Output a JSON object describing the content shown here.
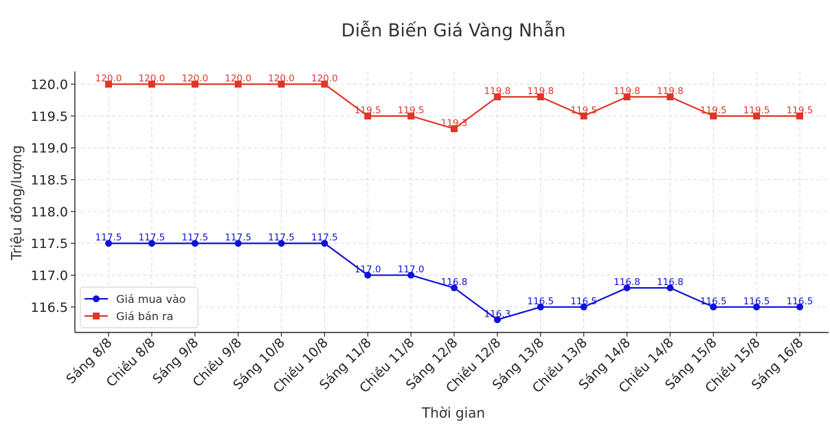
{
  "chart_data": {
    "type": "line",
    "title": "Diễn Biến Giá Vàng Nhẫn",
    "xlabel": "Thời gian",
    "ylabel": "Triệu đồng/lượng",
    "ylim": [
      116.1,
      120.2
    ],
    "yticks": [
      116.5,
      117.0,
      117.5,
      118.0,
      118.5,
      119.0,
      119.5,
      120.0
    ],
    "ytick_labels": [
      "116.5",
      "117.0",
      "117.5",
      "118.0",
      "118.5",
      "119.0",
      "119.5",
      "120.0"
    ],
    "grid": true,
    "legend_position": "lower-left",
    "categories": [
      "Sáng 8/8",
      "Chiều 8/8",
      "Sáng 9/8",
      "Chiều 9/8",
      "Sáng 10/8",
      "Chiều 10/8",
      "Sáng 11/8",
      "Chiều 11/8",
      "Sáng 12/8",
      "Chiều 12/8",
      "Sáng 13/8",
      "Chiều 13/8",
      "Sáng 14/8",
      "Chiều 14/8",
      "Sáng 15/8",
      "Chiều 15/8",
      "Sáng 16/8"
    ],
    "series": [
      {
        "name": "Giá mua vào",
        "color": "#1010d8",
        "marker": "circle",
        "values": [
          117.5,
          117.5,
          117.5,
          117.5,
          117.5,
          117.5,
          117.0,
          117.0,
          116.8,
          116.3,
          116.5,
          116.5,
          116.8,
          116.8,
          116.5,
          116.5,
          116.5
        ],
        "labels": [
          "117.5",
          "117.5",
          "117.5",
          "117.5",
          "117.5",
          "117.5",
          "117.0",
          "117.0",
          "116.8",
          "116.3",
          "116.5",
          "116.5",
          "116.8",
          "116.8",
          "116.5",
          "116.5",
          "116.5"
        ]
      },
      {
        "name": "Giá bán ra",
        "color": "#e03526",
        "marker": "square",
        "values": [
          120.0,
          120.0,
          120.0,
          120.0,
          120.0,
          120.0,
          119.5,
          119.5,
          119.3,
          119.8,
          119.8,
          119.5,
          119.8,
          119.8,
          119.5,
          119.5,
          119.5
        ],
        "labels": [
          "120.0",
          "120.0",
          "120.0",
          "120.0",
          "120.0",
          "120.0",
          "119.5",
          "119.5",
          "119.3",
          "119.8",
          "119.8",
          "119.5",
          "119.8",
          "119.8",
          "119.5",
          "119.5",
          "119.5"
        ]
      }
    ]
  }
}
